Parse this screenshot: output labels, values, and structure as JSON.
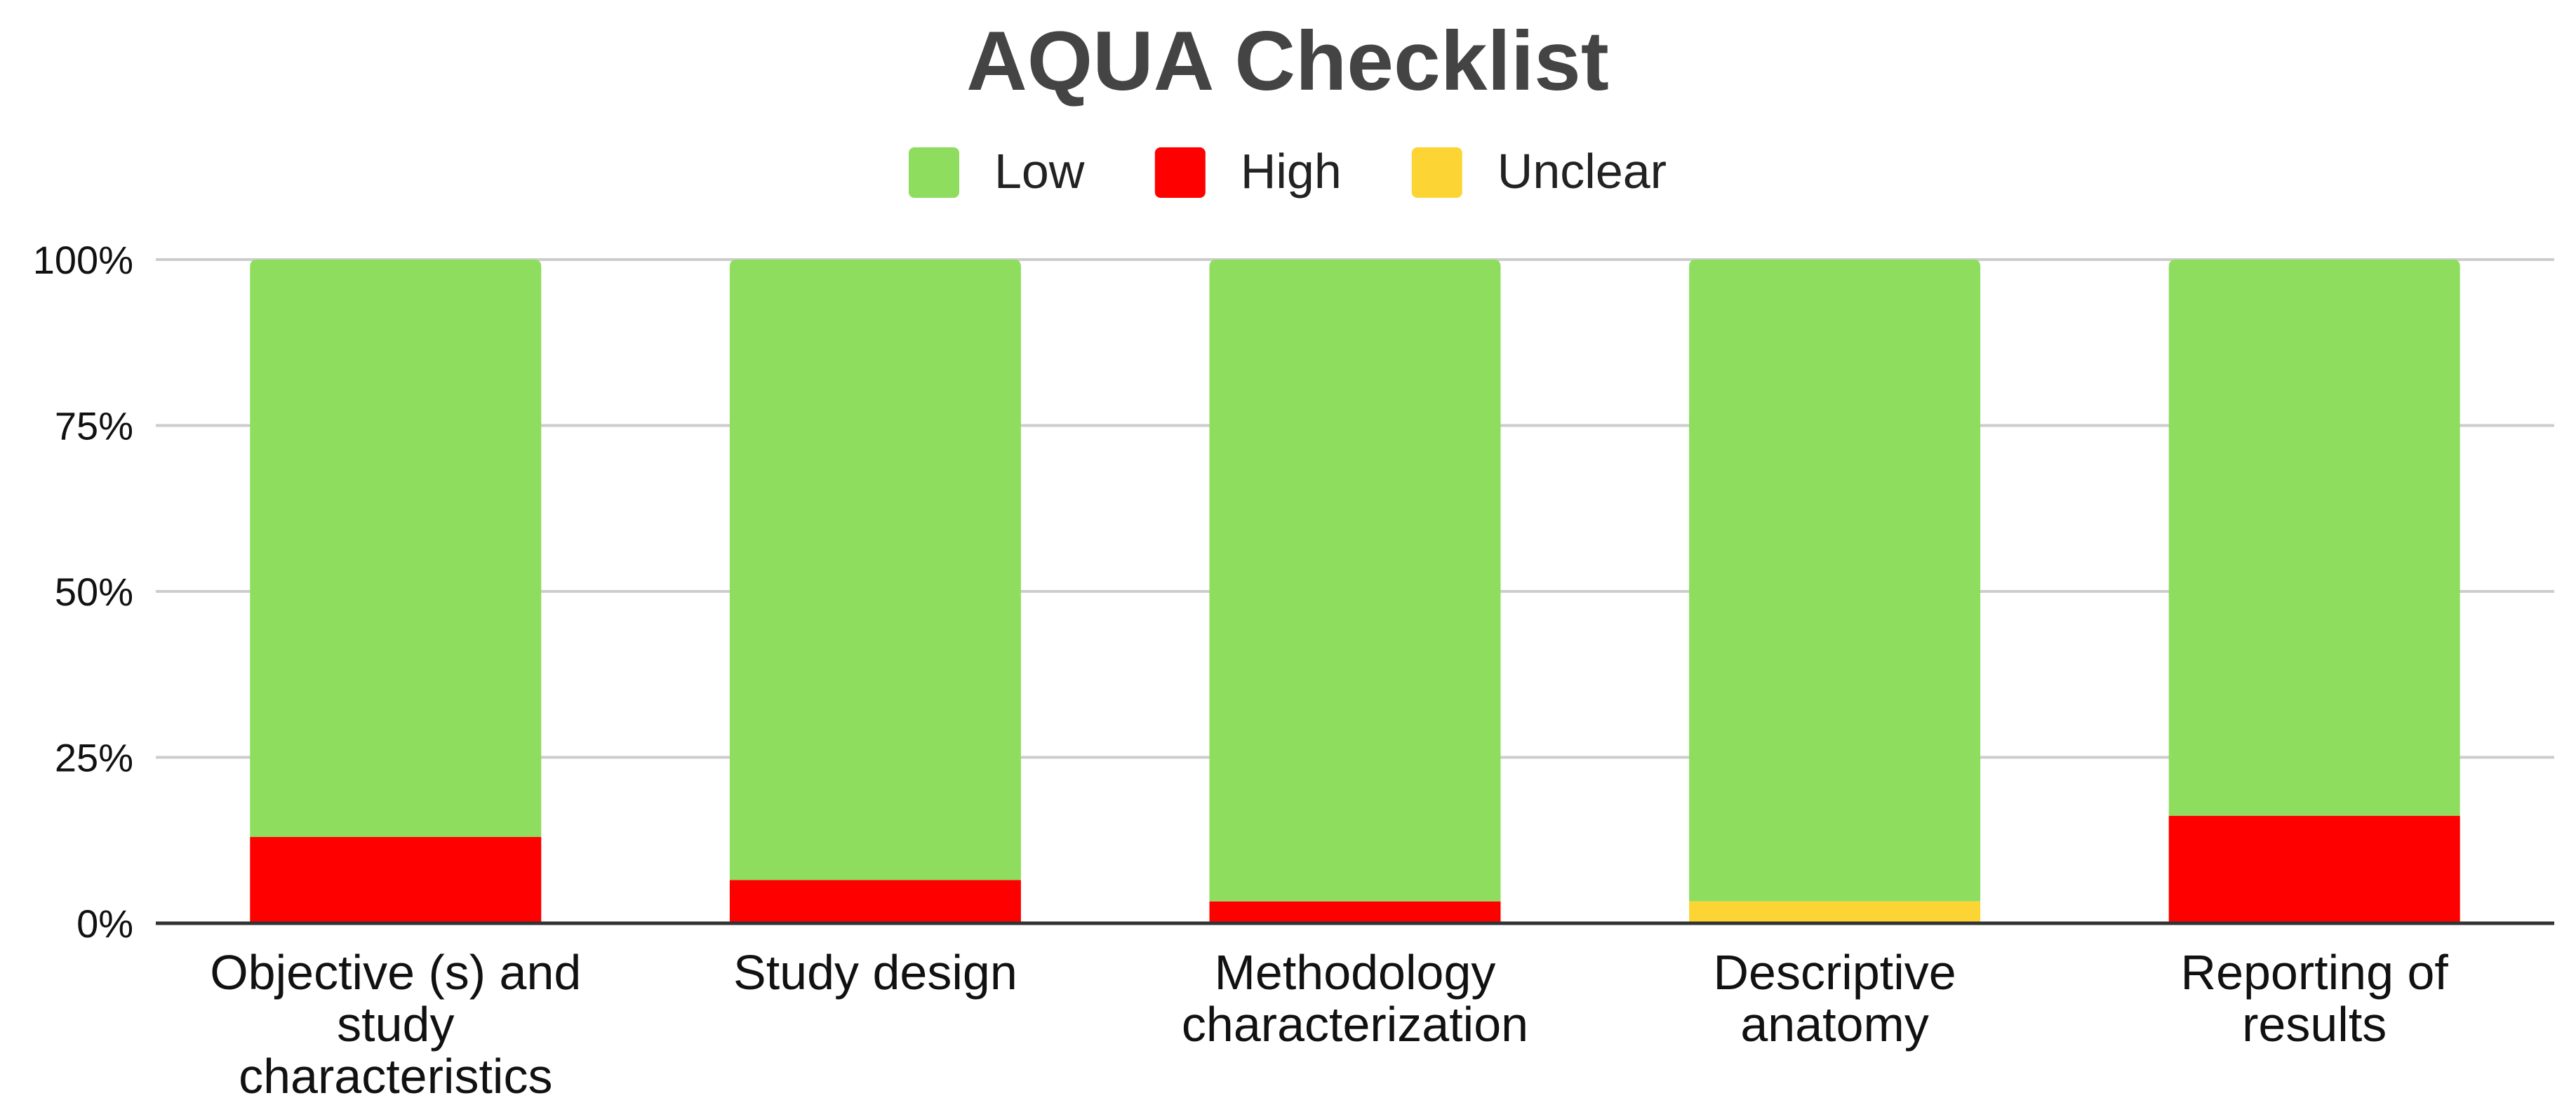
{
  "chart_data": {
    "type": "bar",
    "stacked": true,
    "title": "AQUA Checklist",
    "categories": [
      [
        "Objective (s) and",
        "study",
        "characteristics"
      ],
      [
        "Study design"
      ],
      [
        "Methodology",
        "characterization"
      ],
      [
        "Descriptive",
        "anatomy"
      ],
      [
        "Reporting of",
        "results"
      ]
    ],
    "series": [
      {
        "name": "High",
        "color": "#ff0000",
        "values": [
          13,
          6.5,
          3.3,
          0,
          16.2
        ]
      },
      {
        "name": "Unclear",
        "color": "#fcd535",
        "values": [
          0,
          0,
          0,
          3.3,
          0
        ]
      },
      {
        "name": "Low",
        "color": "#8edd5e",
        "values": [
          87,
          93.5,
          96.7,
          96.7,
          83.8
        ]
      }
    ],
    "legend_order": [
      "Low",
      "High",
      "Unclear"
    ],
    "legend_position": "top",
    "ylim": [
      0,
      100
    ],
    "yticks": [
      {
        "value": 0,
        "label": "0%"
      },
      {
        "value": 25,
        "label": "25%"
      },
      {
        "value": 50,
        "label": "50%"
      },
      {
        "value": 75,
        "label": "75%"
      },
      {
        "value": 100,
        "label": "100%"
      }
    ],
    "grid": true,
    "colors": {
      "grid": "#cccccc",
      "axis": "#333333",
      "title": "#444444"
    }
  }
}
